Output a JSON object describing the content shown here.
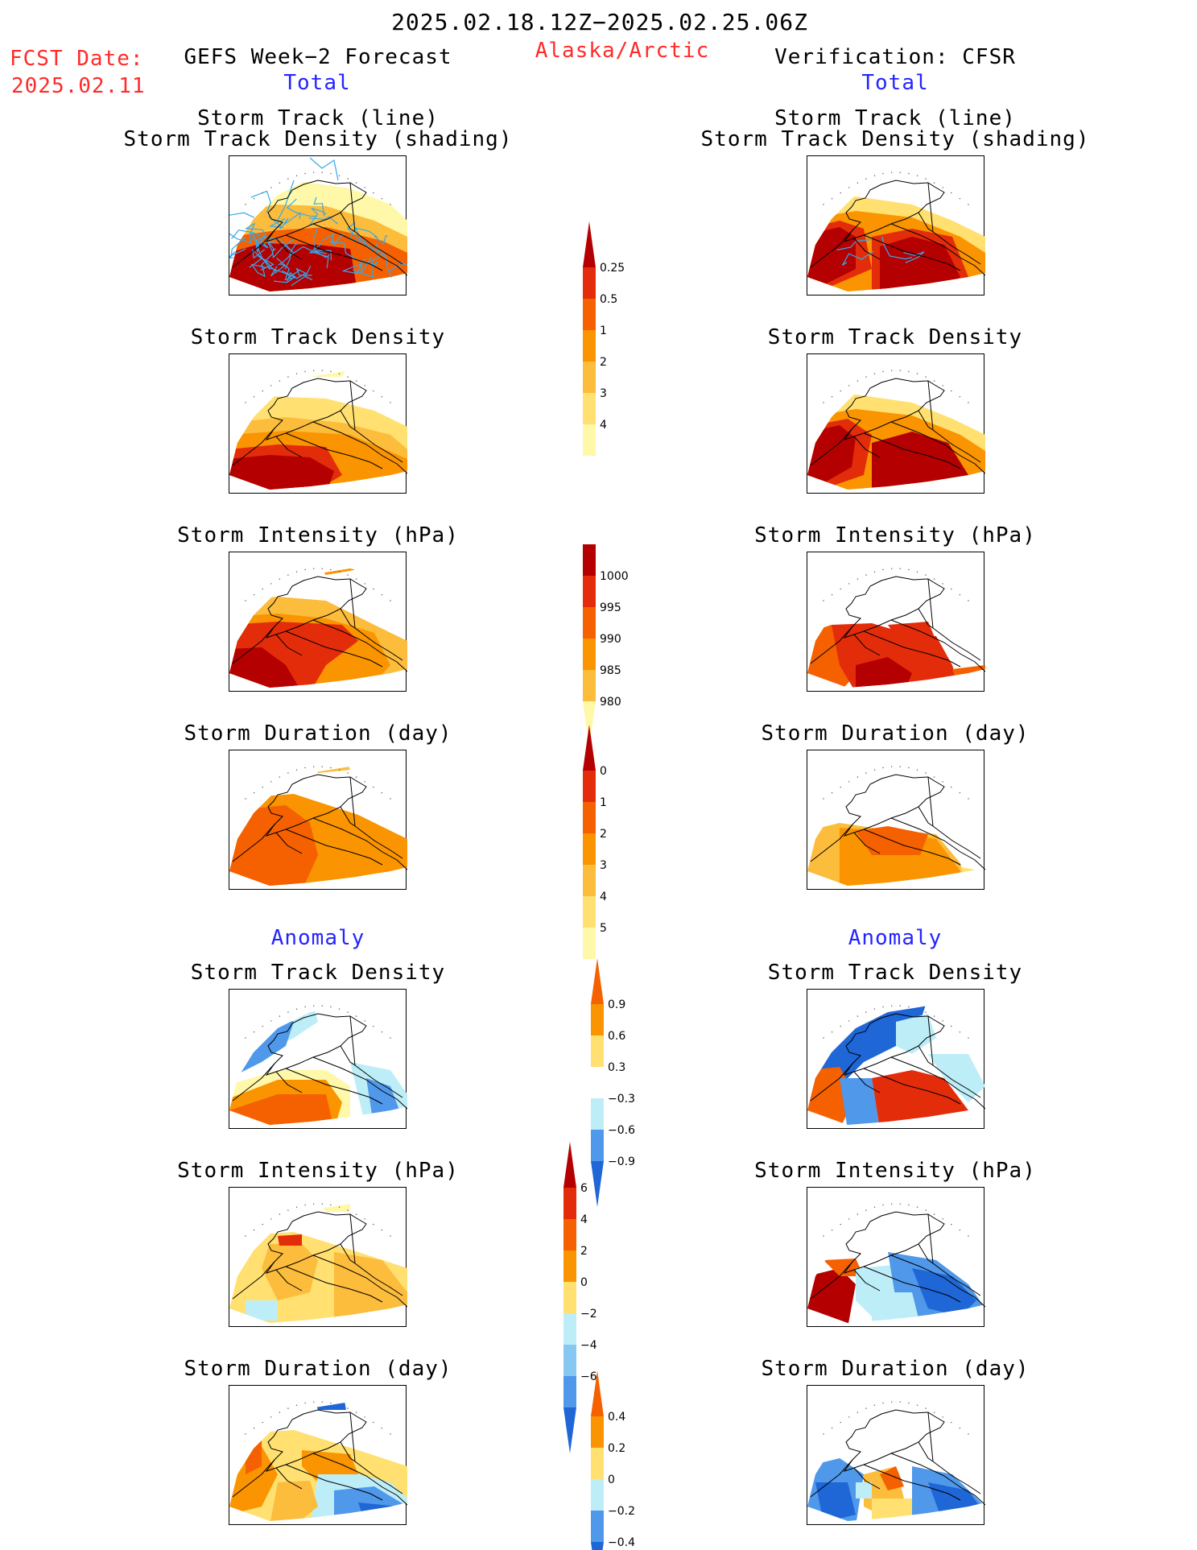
{
  "header": {
    "date_range": "2025.02.18.12Z−2025.02.25.06Z",
    "region": "Alaska/Arctic",
    "fcst_label": "FCST Date:",
    "fcst_date": "2025.02.11",
    "left_title": "GEFS Week−2 Forecast",
    "right_title": "Verification: CFSR",
    "total_left": "Total",
    "total_right": "Total",
    "anomaly_left": "Anomaly",
    "anomaly_right": "Anomaly"
  },
  "panels": {
    "track_line": "Storm Track (line)",
    "track_shading": "Storm Track Density (shading)",
    "density": "Storm Track Density",
    "intensity": "Storm Intensity (hPa)",
    "duration": "Storm Duration (day)"
  },
  "colors": {
    "c1": "#fff8a8",
    "c2": "#ffe070",
    "c3": "#fcbc3c",
    "c4": "#fa9400",
    "c5": "#f56000",
    "c6": "#e32c0a",
    "c7": "#b40000",
    "b1": "#bdeef8",
    "b2": "#86c8f2",
    "b3": "#4f98ea",
    "b4": "#1f66d6",
    "track": "#33aaee"
  },
  "colorbars": {
    "density_total": [
      "0.25",
      "0.5",
      "1",
      "2",
      "3",
      "4"
    ],
    "intensity_total": [
      "1000",
      "995",
      "990",
      "985",
      "980"
    ],
    "duration_total": [
      "0",
      "1",
      "2",
      "3",
      "4",
      "5"
    ],
    "density_anom": [
      "0.9",
      "0.6",
      "0.3",
      "−0.3",
      "−0.6",
      "−0.9"
    ],
    "intensity_anom": [
      "6",
      "4",
      "2",
      "0",
      "−2",
      "−4",
      "−6"
    ],
    "duration_anom": [
      "0.4",
      "0.2",
      "0",
      "−0.2",
      "−0.4"
    ]
  }
}
